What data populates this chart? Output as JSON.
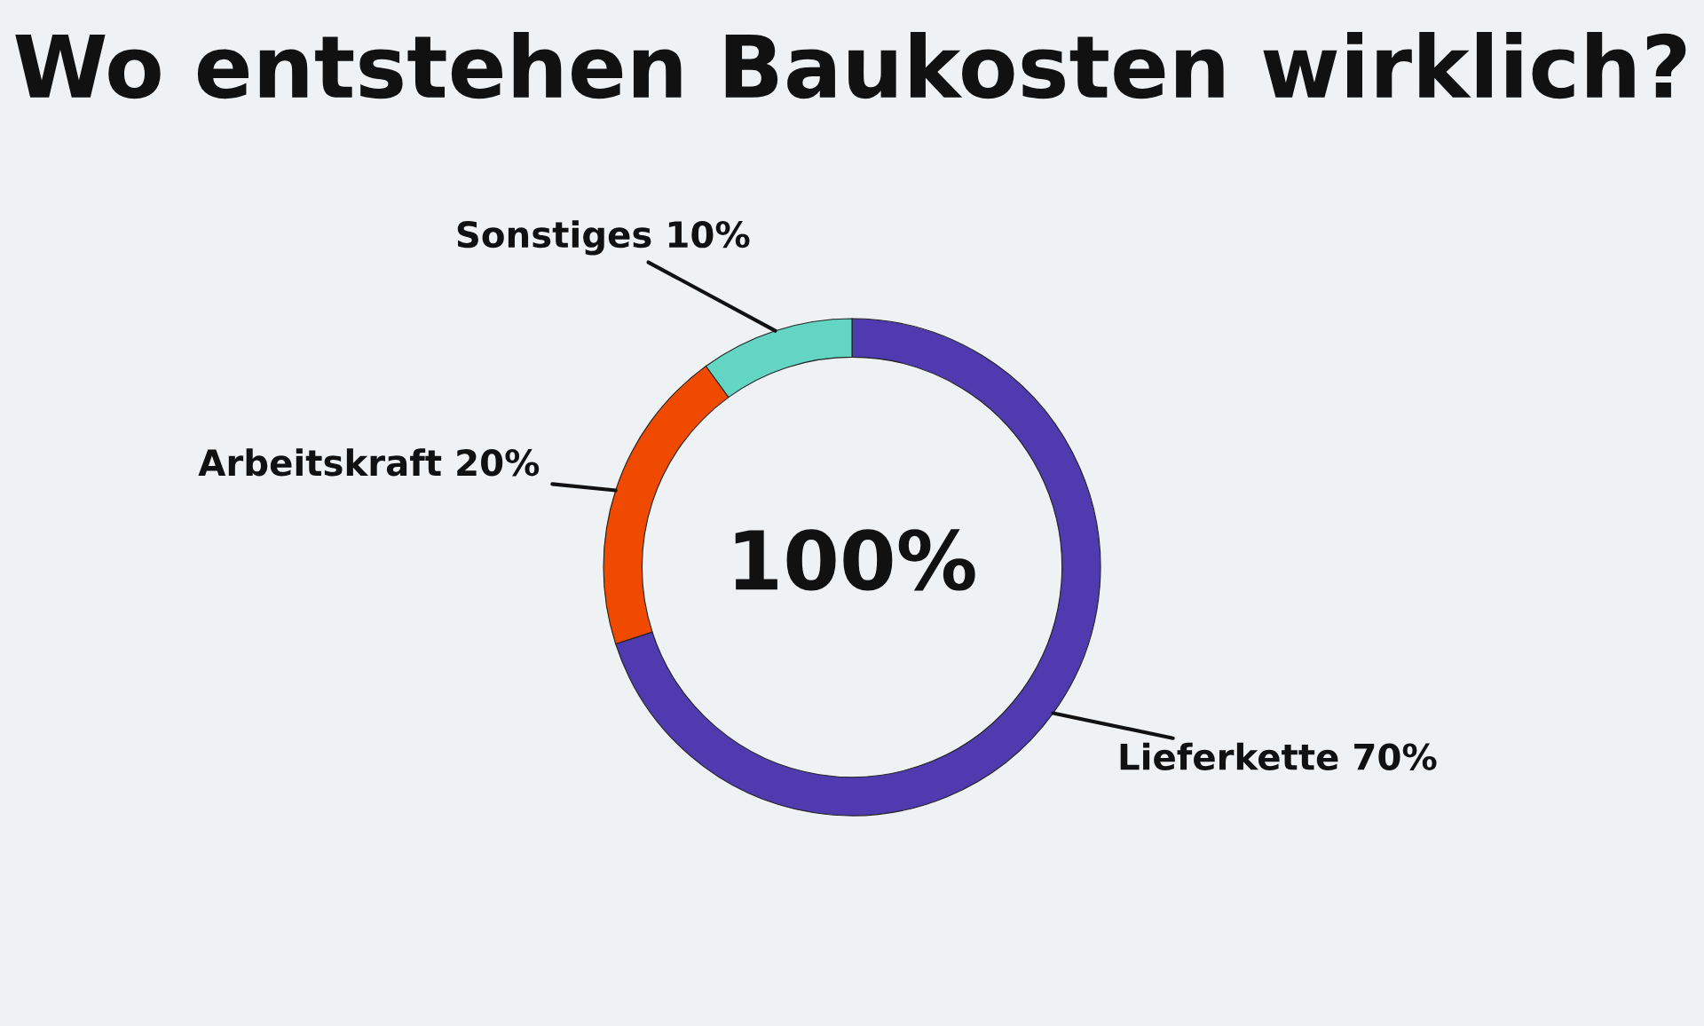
{
  "chart_data": {
    "type": "donut",
    "title": "Wo entstehen Baukosten wirklich?",
    "categories": [
      "Lieferkette",
      "Arbeitskraft",
      "Sonstiges"
    ],
    "values": [
      70,
      20,
      10
    ],
    "value_labels": [
      "70%",
      "20%",
      "10%"
    ],
    "colors": [
      "#4f3ab0",
      "#f04a00",
      "#62d5c3"
    ],
    "annotations": [
      "100%"
    ],
    "legend": false
  }
}
